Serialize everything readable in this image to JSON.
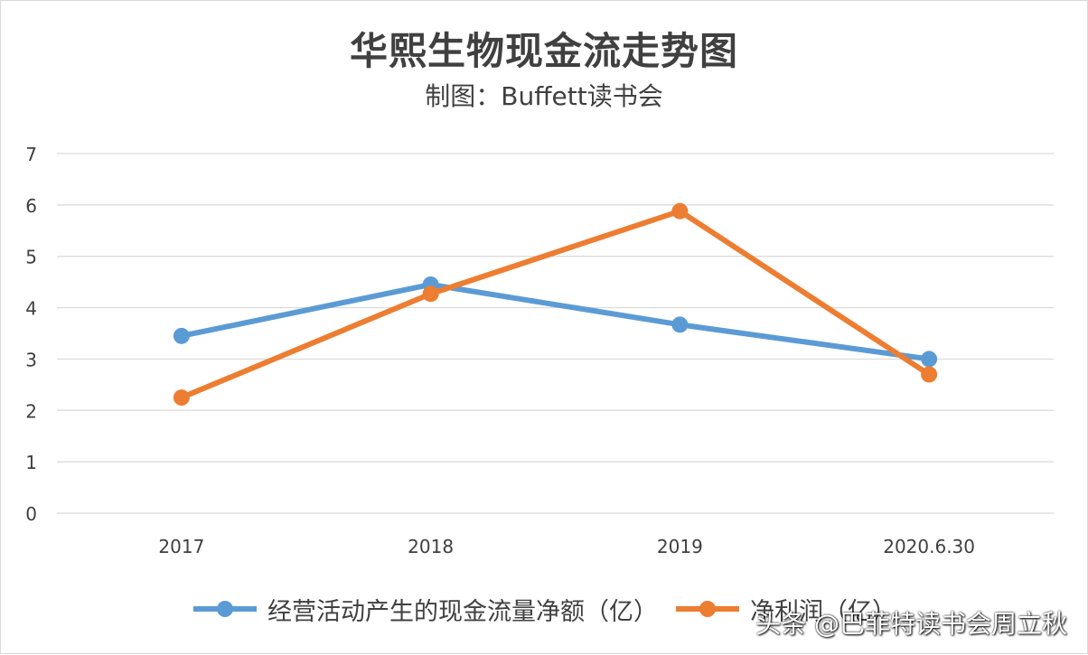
{
  "chart_data": {
    "type": "line",
    "title": "华熙生物现金流走势图",
    "subtitle": "制图：Buffett读书会",
    "categories": [
      "2017",
      "2018",
      "2019",
      "2020.6.30"
    ],
    "yticks": [
      "0",
      "1",
      "2",
      "3",
      "4",
      "5",
      "6",
      "7"
    ],
    "ylim": [
      0,
      7
    ],
    "grid": true,
    "legend_position": "bottom",
    "series": [
      {
        "name": "经营活动产生的现金流量净额（亿）",
        "color": "#5b9bd5",
        "values": [
          3.45,
          4.45,
          3.67,
          3.0
        ]
      },
      {
        "name": "净利润（亿）",
        "color": "#ed7d31",
        "values": [
          2.25,
          4.27,
          5.88,
          2.7
        ]
      }
    ]
  },
  "watermark": "头条 @巴菲特读书会周立秋"
}
